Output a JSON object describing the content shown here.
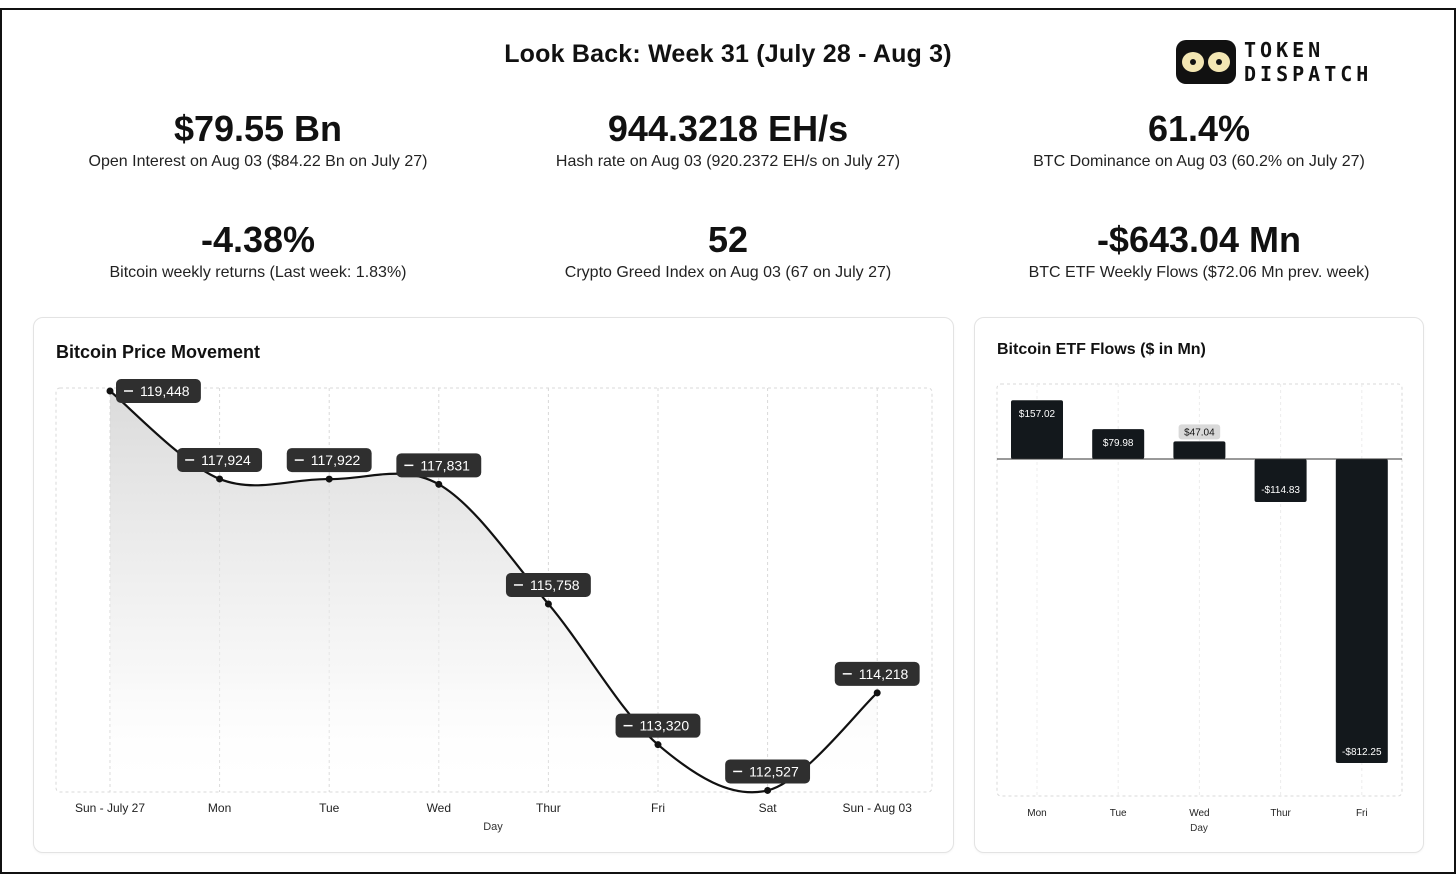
{
  "header": {
    "title": "Look Back: Week 31 (July 28 - Aug 3)",
    "logo_line1": "TOKEN",
    "logo_line2": "DISPATCH"
  },
  "stats": [
    {
      "value": "$79.55 Bn",
      "label": "Open Interest on Aug 03 ($84.22 Bn on July 27)"
    },
    {
      "value": "944.3218 EH/s",
      "label": "Hash rate on Aug 03 (920.2372 EH/s on July 27)"
    },
    {
      "value": "61.4%",
      "label": "BTC Dominance on Aug 03 (60.2% on July 27)"
    },
    {
      "value": "-4.38%",
      "label": "Bitcoin weekly returns (Last week: 1.83%)"
    },
    {
      "value": "52",
      "label": "Crypto Greed Index on Aug 03 (67 on July 27)"
    },
    {
      "value": "-$643.04 Mn",
      "label": "BTC ETF Weekly Flows ($72.06 Mn prev. week)"
    }
  ],
  "colors": {
    "accent": "#13181c",
    "label_bg": "#2f2f2f",
    "grid": "#d9d9d9"
  },
  "chart_data": [
    {
      "type": "area",
      "title": "Bitcoin Price Movement",
      "xlabel": "Day",
      "ylabel": "",
      "categories": [
        "Sun - July 27",
        "Mon",
        "Tue",
        "Wed",
        "Thur",
        "Fri",
        "Sat",
        "Sun - Aug 03"
      ],
      "values": [
        119448,
        117924,
        117922,
        117831,
        115758,
        113320,
        112527,
        114218
      ],
      "value_labels": [
        "119,448",
        "117,924",
        "117,922",
        "117,831",
        "115,758",
        "113,320",
        "112,527",
        "114,218"
      ],
      "ylim": [
        112500,
        119500
      ],
      "grid": true
    },
    {
      "type": "bar",
      "title": "Bitcoin ETF Flows ($ in Mn)",
      "xlabel": "Day",
      "ylabel": "",
      "categories": [
        "Mon",
        "Tue",
        "Wed",
        "Thur",
        "Fri"
      ],
      "values": [
        157.02,
        79.98,
        47.04,
        -114.83,
        -812.25
      ],
      "value_labels": [
        "$157.02",
        "$79.98",
        "$47.04",
        "-$114.83",
        "-$812.25"
      ],
      "ylim": [
        -812.25,
        200
      ],
      "grid": true
    }
  ]
}
